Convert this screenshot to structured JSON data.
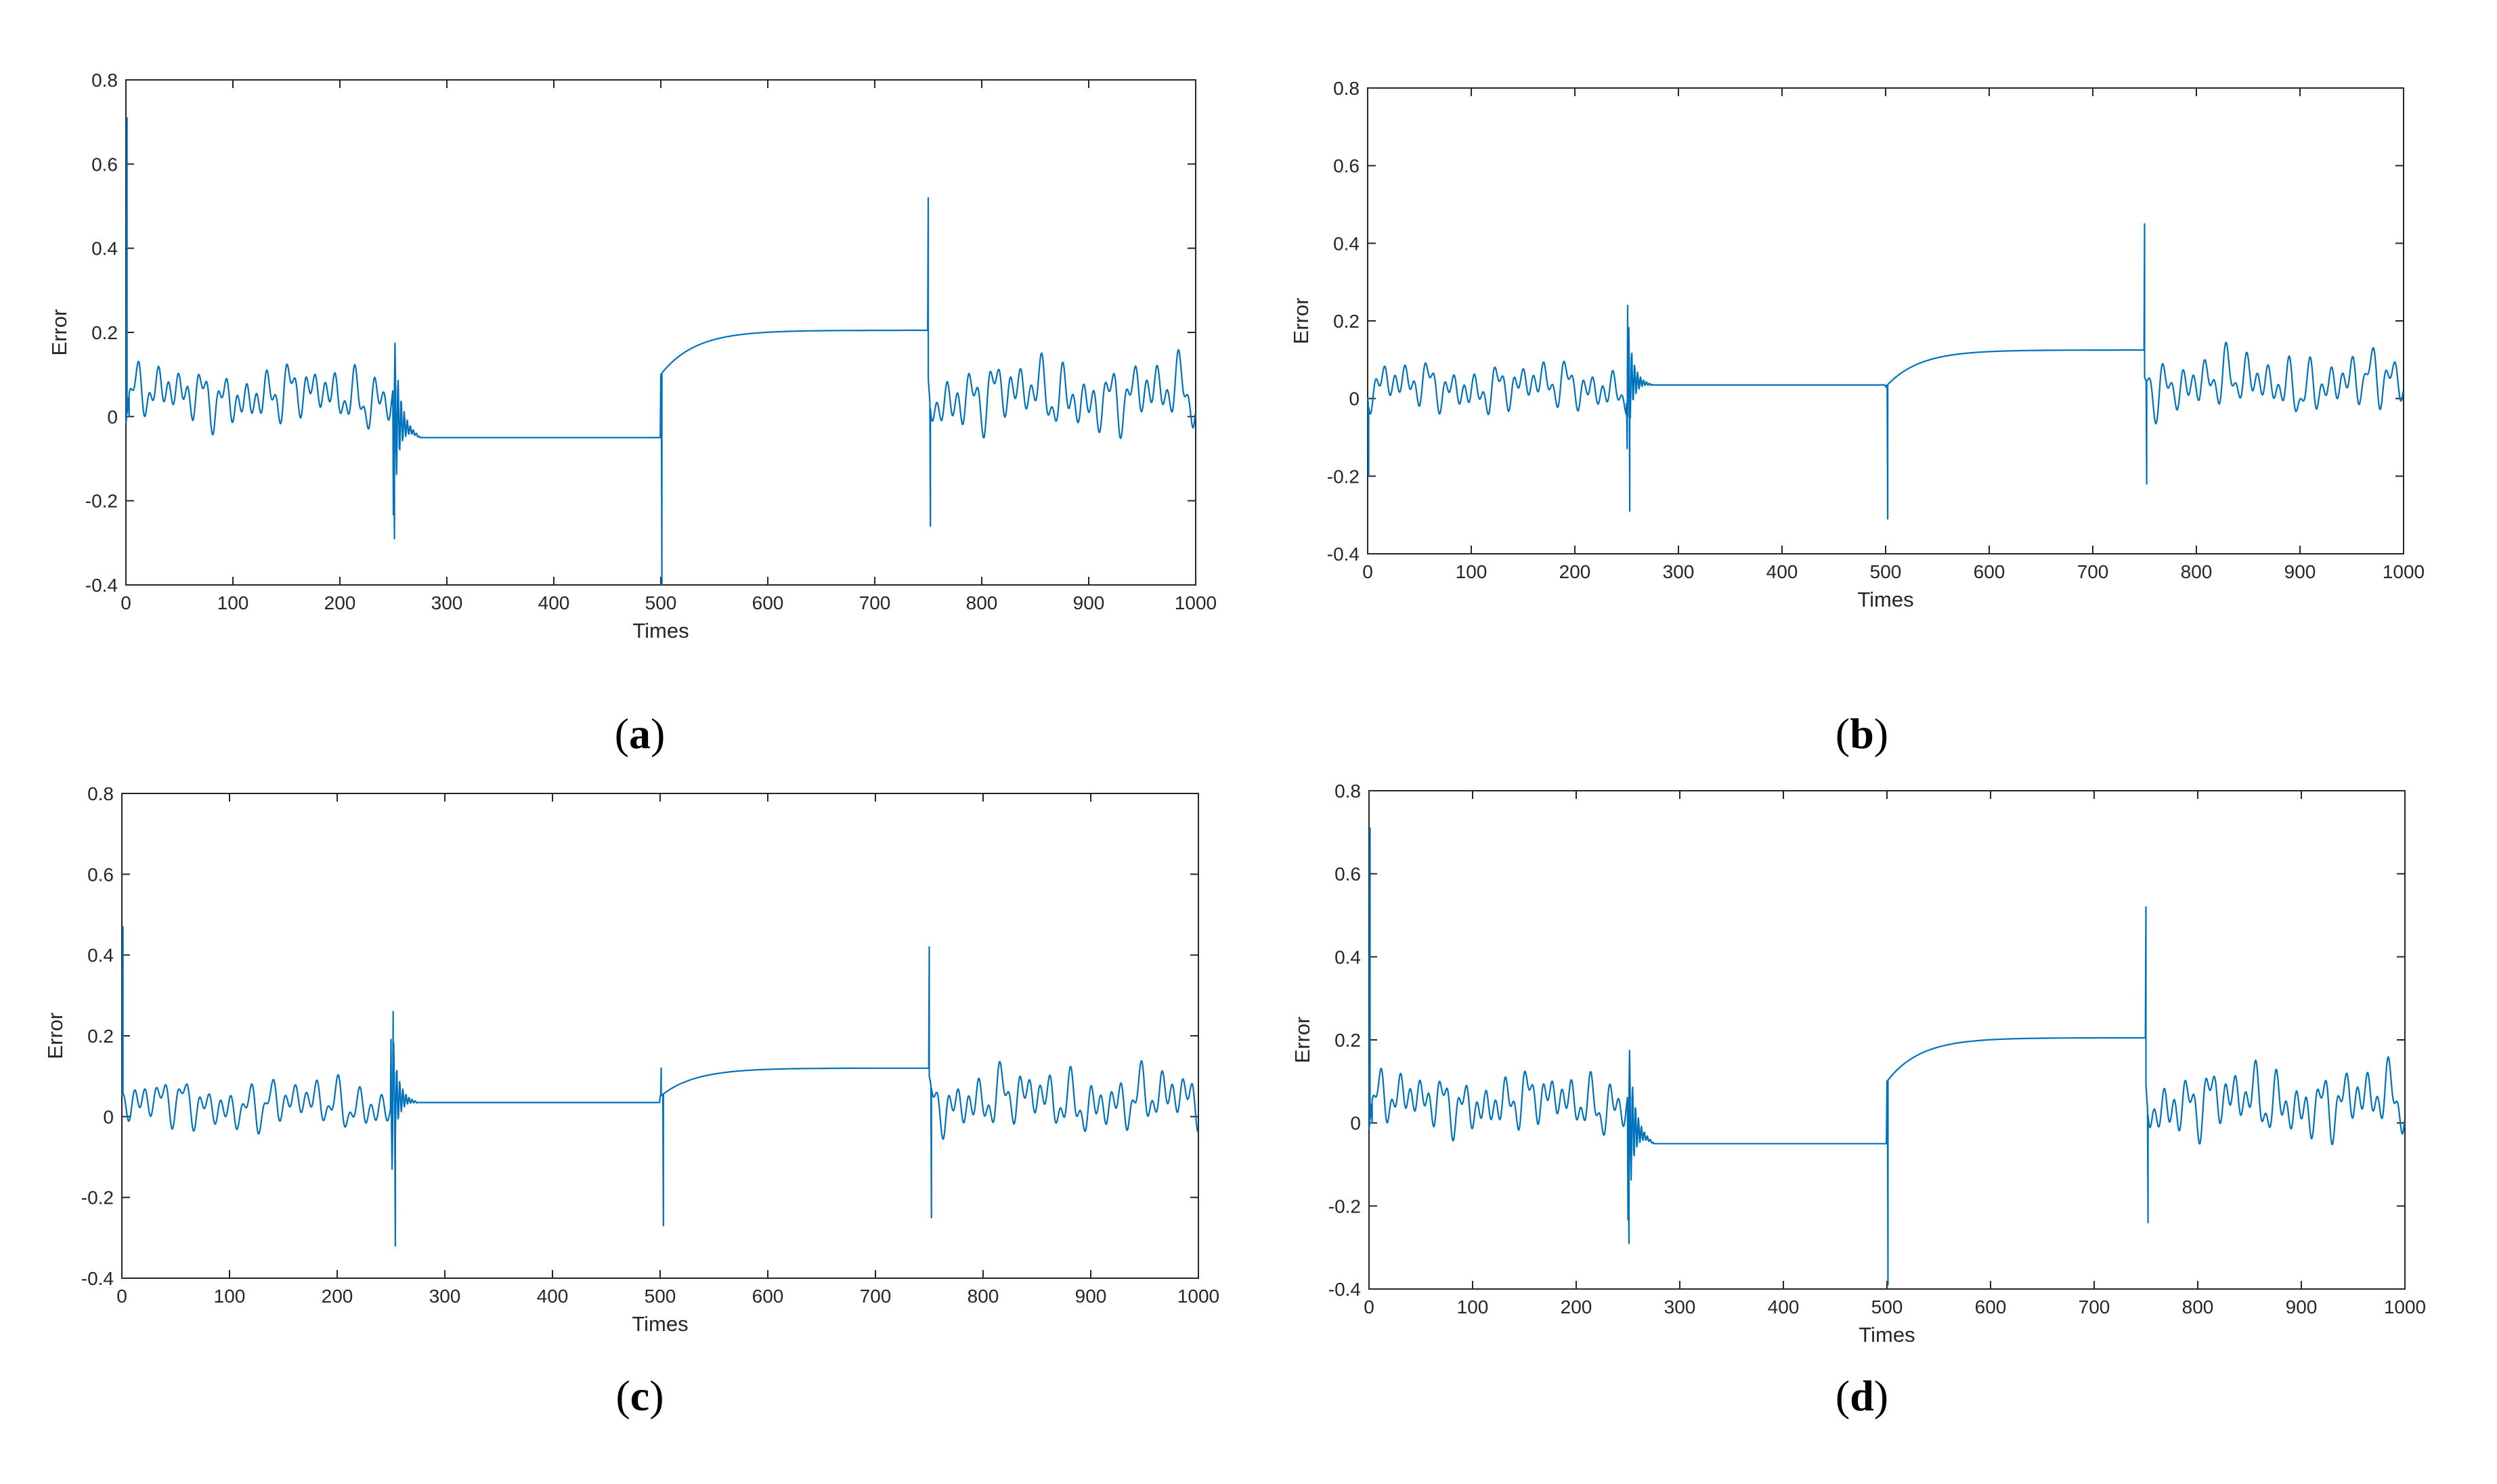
{
  "figure_labels": [
    "a",
    "b",
    "c",
    "d"
  ],
  "colors": {
    "line": "#0072BD",
    "axes": "#262626",
    "grid_box": "#262626"
  },
  "chart_data": [
    {
      "panel": "a",
      "type": "line",
      "xlabel": "Times",
      "ylabel": "Error",
      "xlim": [
        0,
        1000
      ],
      "ylim": [
        -0.4,
        0.8
      ],
      "xticks": [
        "0",
        "100",
        "200",
        "300",
        "400",
        "500",
        "600",
        "700",
        "800",
        "900",
        "1000"
      ],
      "yticks": [
        "-0.4",
        "-0.2",
        "0",
        "0.2",
        "0.4",
        "0.6",
        "0.8"
      ],
      "segments": [
        {
          "x0": 0,
          "x1": 250,
          "kind": "osc",
          "base": 0.05,
          "amp": 0.1,
          "seed": 1
        },
        {
          "x0": 250,
          "x1": 275,
          "kind": "ring",
          "from": 0.0,
          "to": -0.05,
          "amp": 0.24,
          "seed": 2
        },
        {
          "x0": 275,
          "x1": 500,
          "kind": "flat",
          "value": -0.05
        },
        {
          "x0": 500,
          "x1": 750,
          "kind": "rise",
          "from": 0.1,
          "to": 0.205
        },
        {
          "x0": 750,
          "x1": 1000,
          "kind": "osc",
          "base": 0.05,
          "amp": 0.12,
          "seed": 3
        }
      ],
      "spikes": [
        {
          "x": 1,
          "y": 0.71
        },
        {
          "x": 3,
          "y": 0.0
        },
        {
          "x": 251,
          "y": -0.29
        },
        {
          "x": 501,
          "y": -0.4
        },
        {
          "x": 750,
          "y": 0.52
        },
        {
          "x": 752,
          "y": -0.26
        }
      ]
    },
    {
      "panel": "b",
      "type": "line",
      "xlabel": "Times",
      "ylabel": "Error",
      "xlim": [
        0,
        1000
      ],
      "ylim": [
        -0.4,
        0.8
      ],
      "xticks": [
        "0",
        "100",
        "200",
        "300",
        "400",
        "500",
        "600",
        "700",
        "800",
        "900",
        "1000"
      ],
      "yticks": [
        "-0.4",
        "-0.2",
        "0",
        "0.2",
        "0.4",
        "0.6",
        "0.8"
      ],
      "segments": [
        {
          "x0": 0,
          "x1": 250,
          "kind": "osc",
          "base": 0.03,
          "amp": 0.09,
          "seed": 4
        },
        {
          "x0": 250,
          "x1": 275,
          "kind": "ring",
          "from": 0.05,
          "to": 0.035,
          "amp": 0.2,
          "seed": 5
        },
        {
          "x0": 275,
          "x1": 500,
          "kind": "flat",
          "value": 0.035
        },
        {
          "x0": 500,
          "x1": 750,
          "kind": "rise",
          "from": 0.03,
          "to": 0.125
        },
        {
          "x0": 750,
          "x1": 1000,
          "kind": "osc",
          "base": 0.04,
          "amp": 0.11,
          "seed": 6
        }
      ],
      "spikes": [
        {
          "x": 1,
          "y": -0.2
        },
        {
          "x": 251,
          "y": 0.24
        },
        {
          "x": 253,
          "y": -0.29
        },
        {
          "x": 502,
          "y": -0.31
        },
        {
          "x": 750,
          "y": 0.45
        },
        {
          "x": 752,
          "y": -0.22
        }
      ]
    },
    {
      "panel": "c",
      "type": "line",
      "xlabel": "Times",
      "ylabel": "Error",
      "xlim": [
        0,
        1000
      ],
      "ylim": [
        -0.4,
        0.8
      ],
      "xticks": [
        "0",
        "100",
        "200",
        "300",
        "400",
        "500",
        "600",
        "700",
        "800",
        "900",
        "1000"
      ],
      "yticks": [
        "-0.4",
        "-0.2",
        "0",
        "0.2",
        "0.4",
        "0.6",
        "0.8"
      ],
      "segments": [
        {
          "x0": 0,
          "x1": 250,
          "kind": "osc",
          "base": 0.03,
          "amp": 0.09,
          "seed": 7
        },
        {
          "x0": 250,
          "x1": 275,
          "kind": "ring",
          "from": 0.05,
          "to": 0.035,
          "amp": 0.22,
          "seed": 8
        },
        {
          "x0": 275,
          "x1": 500,
          "kind": "flat",
          "value": 0.035
        },
        {
          "x0": 500,
          "x1": 750,
          "kind": "rise",
          "from": 0.05,
          "to": 0.12
        },
        {
          "x0": 750,
          "x1": 1000,
          "kind": "osc",
          "base": 0.04,
          "amp": 0.11,
          "seed": 9
        }
      ],
      "spikes": [
        {
          "x": 1,
          "y": 0.47
        },
        {
          "x": 252,
          "y": 0.26
        },
        {
          "x": 254,
          "y": -0.32
        },
        {
          "x": 501,
          "y": 0.12
        },
        {
          "x": 503,
          "y": -0.27
        },
        {
          "x": 750,
          "y": 0.42
        },
        {
          "x": 752,
          "y": -0.25
        }
      ]
    },
    {
      "panel": "d",
      "type": "line",
      "xlabel": "Times",
      "ylabel": "Error",
      "xlim": [
        0,
        1000
      ],
      "ylim": [
        -0.4,
        0.8
      ],
      "xticks": [
        "0",
        "100",
        "200",
        "300",
        "400",
        "500",
        "600",
        "700",
        "800",
        "900",
        "1000"
      ],
      "yticks": [
        "-0.4",
        "-0.2",
        "0",
        "0.2",
        "0.4",
        "0.6",
        "0.8"
      ],
      "segments": [
        {
          "x0": 0,
          "x1": 250,
          "kind": "osc",
          "base": 0.05,
          "amp": 0.1,
          "seed": 1
        },
        {
          "x0": 250,
          "x1": 275,
          "kind": "ring",
          "from": 0.0,
          "to": -0.05,
          "amp": 0.24,
          "seed": 2
        },
        {
          "x0": 275,
          "x1": 500,
          "kind": "flat",
          "value": -0.05
        },
        {
          "x0": 500,
          "x1": 750,
          "kind": "rise",
          "from": 0.1,
          "to": 0.205
        },
        {
          "x0": 750,
          "x1": 1000,
          "kind": "osc",
          "base": 0.05,
          "amp": 0.12,
          "seed": 3
        }
      ],
      "spikes": [
        {
          "x": 1,
          "y": 0.71
        },
        {
          "x": 3,
          "y": 0.0
        },
        {
          "x": 251,
          "y": -0.29
        },
        {
          "x": 501,
          "y": -0.39
        },
        {
          "x": 750,
          "y": 0.52
        },
        {
          "x": 752,
          "y": -0.24
        }
      ]
    }
  ]
}
